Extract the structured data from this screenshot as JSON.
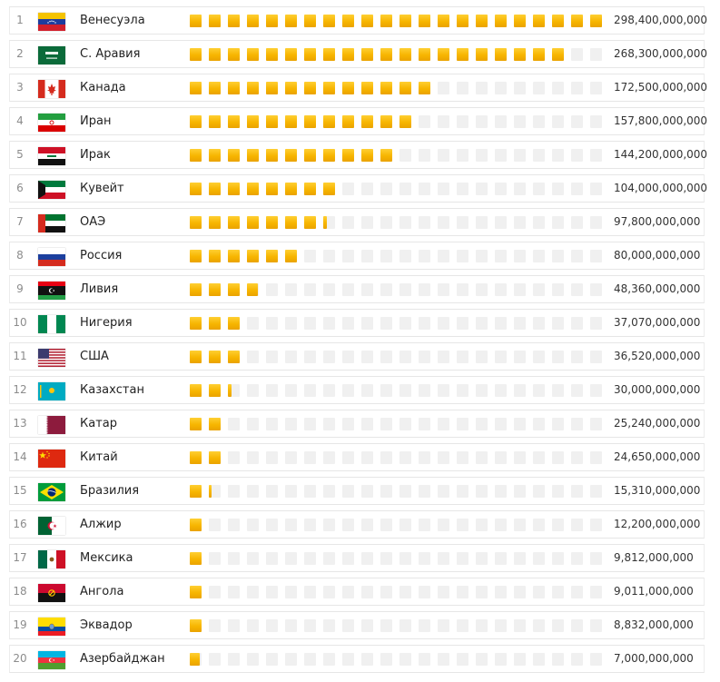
{
  "chart_data": {
    "type": "bar",
    "categories": [
      "Венесуэла",
      "С. Аравия",
      "Канада",
      "Иран",
      "Ирак",
      "Кувейт",
      "ОАЭ",
      "Россия",
      "Ливия",
      "Нигерия",
      "США",
      "Казахстан",
      "Катар",
      "Китай",
      "Бразилия",
      "Алжир",
      "Мексика",
      "Ангола",
      "Эквадор",
      "Азербайджан"
    ],
    "values": [
      298400000000,
      268300000000,
      172500000000,
      157800000000,
      144200000000,
      104000000000,
      97800000000,
      80000000000,
      48360000000,
      37070000000,
      36520000000,
      30000000000,
      25240000000,
      24650000000,
      15310000000,
      12200000000,
      9812000000,
      9011000000,
      8832000000,
      7000000000
    ],
    "ylim": [
      0,
      298400000000
    ]
  },
  "rows": [
    {
      "rank": "1",
      "name": "Венесуэла",
      "value_label": "298,400,000,000",
      "flag": "venezuela-flag-icon"
    },
    {
      "rank": "2",
      "name": "С. Аравия",
      "value_label": "268,300,000,000",
      "flag": "saudi-arabia-flag-icon"
    },
    {
      "rank": "3",
      "name": "Канада",
      "value_label": "172,500,000,000",
      "flag": "canada-flag-icon"
    },
    {
      "rank": "4",
      "name": "Иран",
      "value_label": "157,800,000,000",
      "flag": "iran-flag-icon"
    },
    {
      "rank": "5",
      "name": "Ирак",
      "value_label": "144,200,000,000",
      "flag": "iraq-flag-icon"
    },
    {
      "rank": "6",
      "name": "Кувейт",
      "value_label": "104,000,000,000",
      "flag": "kuwait-flag-icon"
    },
    {
      "rank": "7",
      "name": "ОАЭ",
      "value_label": "97,800,000,000",
      "flag": "uae-flag-icon"
    },
    {
      "rank": "8",
      "name": "Россия",
      "value_label": "80,000,000,000",
      "flag": "russia-flag-icon"
    },
    {
      "rank": "9",
      "name": "Ливия",
      "value_label": "48,360,000,000",
      "flag": "libya-flag-icon"
    },
    {
      "rank": "10",
      "name": "Нигерия",
      "value_label": "37,070,000,000",
      "flag": "nigeria-flag-icon"
    },
    {
      "rank": "11",
      "name": "США",
      "value_label": "36,520,000,000",
      "flag": "usa-flag-icon"
    },
    {
      "rank": "12",
      "name": "Казахстан",
      "value_label": "30,000,000,000",
      "flag": "kazakhstan-flag-icon"
    },
    {
      "rank": "13",
      "name": "Катар",
      "value_label": "25,240,000,000",
      "flag": "qatar-flag-icon"
    },
    {
      "rank": "14",
      "name": "Китай",
      "value_label": "24,650,000,000",
      "flag": "china-flag-icon"
    },
    {
      "rank": "15",
      "name": "Бразилия",
      "value_label": "15,310,000,000",
      "flag": "brazil-flag-icon"
    },
    {
      "rank": "16",
      "name": "Алжир",
      "value_label": "12,200,000,000",
      "flag": "algeria-flag-icon"
    },
    {
      "rank": "17",
      "name": "Мексика",
      "value_label": "9,812,000,000",
      "flag": "mexico-flag-icon"
    },
    {
      "rank": "18",
      "name": "Ангола",
      "value_label": "9,011,000,000",
      "flag": "angola-flag-icon"
    },
    {
      "rank": "19",
      "name": "Эквадор",
      "value_label": "8,832,000,000",
      "flag": "ecuador-flag-icon"
    },
    {
      "rank": "20",
      "name": "Азербайджан",
      "value_label": "7,000,000,000",
      "flag": "azerbaijan-flag-icon"
    }
  ],
  "colors": {
    "bar_fill": "#f7b500",
    "bar_empty": "#f0f0f0"
  }
}
